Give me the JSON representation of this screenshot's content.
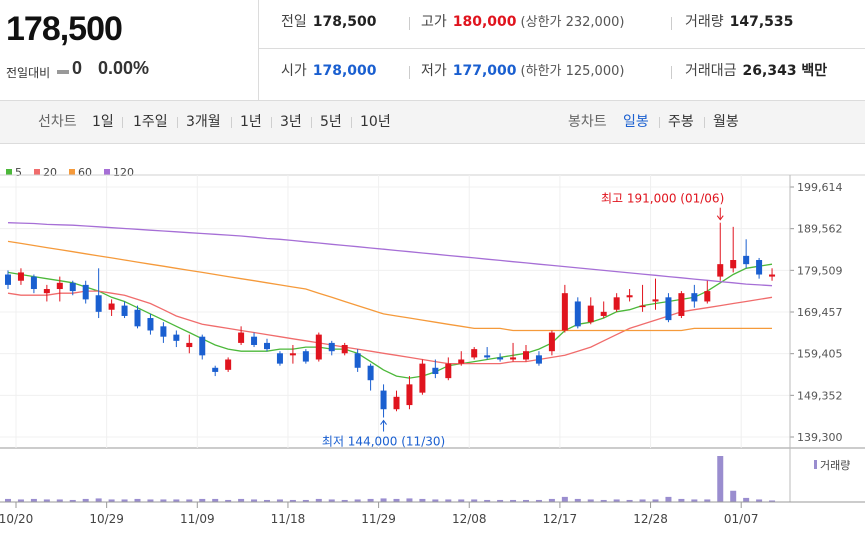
{
  "price": {
    "current": "178,500",
    "change_label": "전일대비",
    "change_value": "0",
    "change_pct": "0.00%"
  },
  "summary": {
    "prev_close": {
      "label": "전일",
      "value": "178,500"
    },
    "high": {
      "label": "고가",
      "value": "180,000",
      "sub": "(상한가 232,000)"
    },
    "volume": {
      "label": "거래량",
      "value": "147,535"
    },
    "open": {
      "label": "시가",
      "value": "178,000"
    },
    "low": {
      "label": "저가",
      "value": "177,000",
      "sub": "(하한가 125,000)"
    },
    "amount": {
      "label": "거래대금",
      "value": "26,343 백만"
    }
  },
  "toolbar": {
    "line_label": "선차트",
    "periods": [
      "1일",
      "1주일",
      "3개월",
      "1년",
      "3년",
      "5년",
      "10년"
    ],
    "candle_label": "봉차트",
    "candle_types": [
      "일봉",
      "주봉",
      "월봉"
    ],
    "active_candle": "일봉"
  },
  "colors": {
    "up": "#e0141e",
    "down": "#1a5fd0",
    "ma5": "#4cb83a",
    "ma20": "#f06c6c",
    "ma60": "#f59a3b",
    "ma120": "#a66fd6",
    "volume": "#9a8dcf"
  },
  "chart_data": {
    "type": "candlestick",
    "legend": [
      {
        "key": "ma5",
        "label": "5"
      },
      {
        "key": "ma20",
        "label": "20"
      },
      {
        "key": "ma60",
        "label": "60"
      },
      {
        "key": "ma120",
        "label": "120"
      }
    ],
    "y_ticks": [
      "199,614",
      "189,562",
      "179,509",
      "169,457",
      "159,405",
      "149,352",
      "139,300"
    ],
    "ylim": [
      139300,
      199614
    ],
    "x_labels": [
      {
        "label": "10/20",
        "index": 0
      },
      {
        "label": "10/29",
        "index": 7
      },
      {
        "label": "11/09",
        "index": 14
      },
      {
        "label": "11/18",
        "index": 21
      },
      {
        "label": "11/29",
        "index": 28
      },
      {
        "label": "12/08",
        "index": 35
      },
      {
        "label": "12/17",
        "index": 42
      },
      {
        "label": "12/28",
        "index": 49
      },
      {
        "label": "01/07",
        "index": 56
      }
    ],
    "volume_label": "거래량",
    "annotations": {
      "high": {
        "text": "최고 191,000 (01/06)",
        "index": 55,
        "value": 191000
      },
      "low": {
        "text": "최저 144,000 (11/30)",
        "index": 29,
        "value": 144000
      }
    },
    "candles": [
      {
        "o": 178500,
        "c": 176000,
        "h": 179500,
        "l": 175000,
        "v": 0.6
      },
      {
        "o": 177000,
        "c": 179000,
        "h": 180000,
        "l": 176000,
        "v": 0.5
      },
      {
        "o": 178000,
        "c": 175000,
        "h": 178500,
        "l": 174000,
        "v": 0.6
      },
      {
        "o": 174000,
        "c": 175000,
        "h": 176000,
        "l": 172000,
        "v": 0.5
      },
      {
        "o": 175000,
        "c": 176500,
        "h": 178000,
        "l": 172000,
        "v": 0.5
      },
      {
        "o": 176500,
        "c": 174500,
        "h": 177000,
        "l": 173500,
        "v": 0.4
      },
      {
        "o": 176000,
        "c": 172500,
        "h": 177000,
        "l": 171500,
        "v": 0.6
      },
      {
        "o": 173500,
        "c": 169500,
        "h": 180000,
        "l": 168000,
        "v": 0.7
      },
      {
        "o": 170000,
        "c": 171500,
        "h": 172500,
        "l": 168500,
        "v": 0.5
      },
      {
        "o": 171000,
        "c": 168500,
        "h": 172000,
        "l": 168000,
        "v": 0.5
      },
      {
        "o": 170000,
        "c": 166000,
        "h": 171000,
        "l": 165500,
        "v": 0.6
      },
      {
        "o": 168000,
        "c": 165000,
        "h": 169000,
        "l": 164000,
        "v": 0.5
      },
      {
        "o": 166000,
        "c": 163500,
        "h": 167000,
        "l": 162000,
        "v": 0.5
      },
      {
        "o": 164000,
        "c": 162500,
        "h": 165000,
        "l": 161000,
        "v": 0.5
      },
      {
        "o": 161000,
        "c": 162000,
        "h": 164000,
        "l": 159500,
        "v": 0.5
      },
      {
        "o": 163500,
        "c": 159000,
        "h": 164000,
        "l": 158000,
        "v": 0.6
      },
      {
        "o": 156000,
        "c": 155000,
        "h": 156500,
        "l": 154000,
        "v": 0.6
      },
      {
        "o": 155500,
        "c": 158000,
        "h": 158500,
        "l": 155000,
        "v": 0.4
      },
      {
        "o": 162000,
        "c": 164500,
        "h": 166000,
        "l": 161500,
        "v": 0.6
      },
      {
        "o": 163500,
        "c": 161500,
        "h": 164500,
        "l": 161000,
        "v": 0.5
      },
      {
        "o": 162000,
        "c": 160500,
        "h": 163000,
        "l": 160000,
        "v": 0.4
      },
      {
        "o": 159500,
        "c": 157000,
        "h": 160000,
        "l": 156500,
        "v": 0.5
      },
      {
        "o": 159000,
        "c": 159500,
        "h": 161500,
        "l": 157000,
        "v": 0.4
      },
      {
        "o": 160000,
        "c": 157500,
        "h": 160500,
        "l": 157000,
        "v": 0.4
      },
      {
        "o": 158000,
        "c": 164000,
        "h": 164500,
        "l": 157500,
        "v": 0.6
      },
      {
        "o": 162000,
        "c": 160000,
        "h": 162500,
        "l": 159000,
        "v": 0.5
      },
      {
        "o": 159500,
        "c": 161500,
        "h": 162000,
        "l": 159000,
        "v": 0.4
      },
      {
        "o": 159500,
        "c": 156000,
        "h": 160500,
        "l": 155000,
        "v": 0.5
      },
      {
        "o": 156500,
        "c": 153000,
        "h": 157000,
        "l": 150500,
        "v": 0.6
      },
      {
        "o": 150500,
        "c": 146000,
        "h": 152000,
        "l": 144000,
        "v": 0.7
      },
      {
        "o": 146000,
        "c": 149000,
        "h": 150500,
        "l": 145500,
        "v": 0.6
      },
      {
        "o": 147000,
        "c": 152000,
        "h": 154000,
        "l": 146000,
        "v": 0.7
      },
      {
        "o": 150000,
        "c": 157000,
        "h": 158000,
        "l": 149500,
        "v": 0.6
      },
      {
        "o": 156000,
        "c": 154500,
        "h": 158000,
        "l": 153500,
        "v": 0.5
      },
      {
        "o": 153500,
        "c": 157000,
        "h": 158500,
        "l": 153000,
        "v": 0.5
      },
      {
        "o": 157000,
        "c": 158000,
        "h": 160000,
        "l": 156500,
        "v": 0.5
      },
      {
        "o": 158500,
        "c": 160500,
        "h": 161000,
        "l": 158000,
        "v": 0.5
      },
      {
        "o": 159000,
        "c": 158500,
        "h": 161000,
        "l": 158000,
        "v": 0.4
      },
      {
        "o": 158500,
        "c": 158000,
        "h": 159500,
        "l": 157500,
        "v": 0.4
      },
      {
        "o": 158000,
        "c": 158500,
        "h": 162000,
        "l": 157500,
        "v": 0.4
      },
      {
        "o": 158000,
        "c": 160000,
        "h": 161500,
        "l": 157500,
        "v": 0.4
      },
      {
        "o": 159000,
        "c": 157000,
        "h": 160000,
        "l": 156500,
        "v": 0.4
      },
      {
        "o": 160000,
        "c": 164500,
        "h": 165000,
        "l": 159000,
        "v": 0.6
      },
      {
        "o": 165000,
        "c": 174000,
        "h": 176000,
        "l": 164500,
        "v": 1.0
      },
      {
        "o": 172000,
        "c": 166000,
        "h": 173000,
        "l": 165500,
        "v": 0.6
      },
      {
        "o": 167000,
        "c": 171000,
        "h": 173000,
        "l": 166500,
        "v": 0.5
      },
      {
        "o": 168500,
        "c": 169500,
        "h": 172000,
        "l": 168000,
        "v": 0.4
      },
      {
        "o": 170000,
        "c": 173000,
        "h": 174000,
        "l": 169500,
        "v": 0.5
      },
      {
        "o": 173000,
        "c": 173500,
        "h": 175000,
        "l": 172000,
        "v": 0.4
      },
      {
        "o": 171000,
        "c": 171000,
        "h": 176000,
        "l": 169500,
        "v": 0.5
      },
      {
        "o": 172000,
        "c": 172500,
        "h": 177500,
        "l": 170000,
        "v": 0.5
      },
      {
        "o": 173000,
        "c": 167500,
        "h": 174000,
        "l": 167000,
        "v": 1.0
      },
      {
        "o": 168500,
        "c": 174000,
        "h": 174500,
        "l": 168000,
        "v": 0.6
      },
      {
        "o": 174000,
        "c": 172000,
        "h": 176000,
        "l": 170500,
        "v": 0.5
      },
      {
        "o": 172000,
        "c": 174500,
        "h": 177000,
        "l": 171500,
        "v": 0.5
      },
      {
        "o": 178000,
        "c": 181000,
        "h": 191000,
        "l": 177000,
        "v": 9.0
      },
      {
        "o": 180000,
        "c": 182000,
        "h": 190000,
        "l": 179000,
        "v": 2.2
      },
      {
        "o": 183000,
        "c": 181000,
        "h": 187000,
        "l": 180000,
        "v": 0.8
      },
      {
        "o": 182000,
        "c": 178500,
        "h": 182500,
        "l": 177500,
        "v": 0.5
      },
      {
        "o": 178000,
        "c": 178500,
        "h": 180000,
        "l": 177000,
        "v": 0.3
      }
    ],
    "series": [
      {
        "name": "ma5",
        "values": [
          179000,
          178500,
          178000,
          177500,
          177000,
          176500,
          175500,
          174500,
          173000,
          172000,
          170500,
          169000,
          167500,
          166000,
          164500,
          163000,
          161500,
          160500,
          160000,
          160000,
          160000,
          160500,
          160500,
          161000,
          161000,
          160500,
          160500,
          159500,
          157500,
          155500,
          154000,
          153500,
          154000,
          155000,
          156500,
          157000,
          157500,
          158000,
          158500,
          159000,
          159500,
          160500,
          162000,
          165000,
          166500,
          167000,
          168000,
          169500,
          170000,
          171000,
          171500,
          172000,
          172500,
          173000,
          174500,
          176500,
          178500,
          180000,
          180500,
          181000
        ]
      },
      {
        "name": "ma20",
        "values": [
          174000,
          173500,
          173500,
          173500,
          174000,
          174000,
          174500,
          174500,
          174000,
          173500,
          172500,
          171500,
          170000,
          168500,
          167500,
          166500,
          166000,
          165500,
          165000,
          164500,
          164000,
          163500,
          163000,
          162500,
          162000,
          161500,
          161000,
          160500,
          160000,
          159500,
          159000,
          158500,
          158000,
          157500,
          157000,
          157000,
          157000,
          157000,
          157000,
          157500,
          157500,
          158000,
          158500,
          159000,
          160000,
          161000,
          162500,
          164000,
          165500,
          166500,
          167500,
          168500,
          169500,
          170000,
          170500,
          171000,
          171500,
          172000,
          172500,
          173000
        ]
      },
      {
        "name": "ma60",
        "values": [
          186500,
          186000,
          185500,
          185000,
          184500,
          184000,
          183500,
          183000,
          182500,
          182000,
          181500,
          181000,
          180500,
          180000,
          179500,
          179000,
          178500,
          178000,
          177500,
          177000,
          176500,
          176000,
          175500,
          175000,
          174000,
          173000,
          172000,
          171000,
          170000,
          169000,
          168500,
          168000,
          167500,
          167000,
          166500,
          166000,
          165500,
          165500,
          165500,
          165000,
          165000,
          165000,
          165000,
          165000,
          165000,
          165000,
          165000,
          165000,
          165000,
          165000,
          165000,
          165000,
          165000,
          165500,
          165500,
          165500,
          165500,
          165500,
          165500,
          165500
        ]
      },
      {
        "name": "ma120",
        "values": [
          191000,
          190900,
          190800,
          190600,
          190500,
          190400,
          190200,
          190000,
          189800,
          189600,
          189400,
          189200,
          189000,
          188800,
          188600,
          188400,
          188200,
          188000,
          187800,
          187500,
          187200,
          187000,
          186700,
          186400,
          186100,
          185800,
          185500,
          185200,
          184900,
          184600,
          184300,
          184000,
          183700,
          183400,
          183100,
          182800,
          182500,
          182200,
          181900,
          181600,
          181300,
          181000,
          180700,
          180400,
          180100,
          179800,
          179500,
          179200,
          178900,
          178600,
          178300,
          178000,
          177700,
          177400,
          177100,
          176800,
          176500,
          176200,
          176000,
          175800
        ]
      }
    ]
  }
}
